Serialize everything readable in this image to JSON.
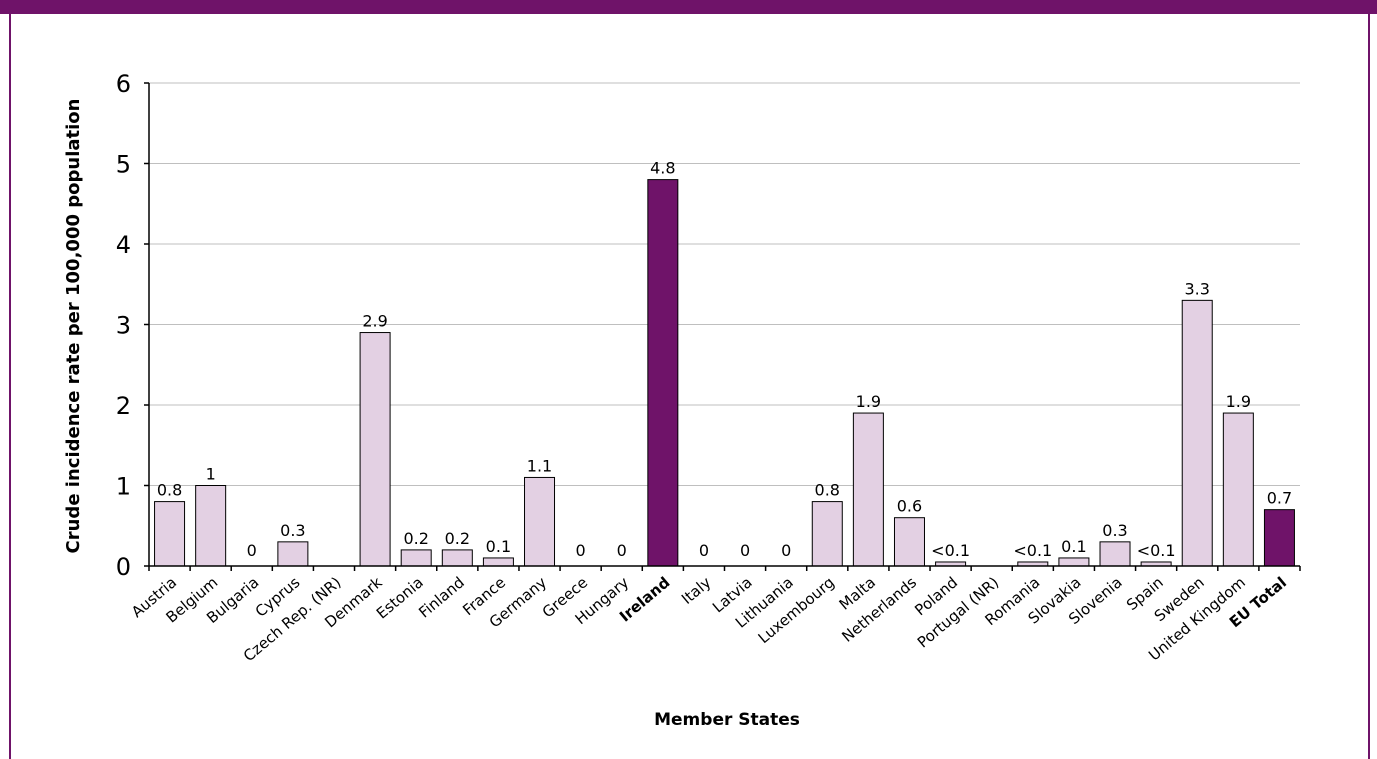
{
  "chart_data": {
    "type": "bar",
    "title": "",
    "xlabel": "Member States",
    "ylabel": "Crude incidence rate per 100,000 population",
    "ylim": [
      0,
      6
    ],
    "yticks": [
      "0",
      "1",
      "2",
      "3",
      "4",
      "5",
      "6"
    ],
    "grid": true,
    "categories": [
      "Austria",
      "Belgium",
      "Bulgaria",
      "Cyprus",
      "Czech Rep. (NR)",
      "Denmark",
      "Estonia",
      "Finland",
      "France",
      "Germany",
      "Greece",
      "Hungary",
      "Ireland",
      "Italy",
      "Latvia",
      "Lithuania",
      "Luxembourg",
      "Malta",
      "Netherlands",
      "Poland",
      "Portugal (NR)",
      "Romania",
      "Slovakia",
      "Slovenia",
      "Spain",
      "Sweden",
      "United Kingdom",
      "EU Total"
    ],
    "values": [
      0.8,
      1,
      0,
      0.3,
      null,
      2.9,
      0.2,
      0.2,
      0.1,
      1.1,
      0,
      0,
      4.8,
      0,
      0,
      0,
      0.8,
      1.9,
      0.6,
      0.05,
      null,
      0.05,
      0.1,
      0.3,
      0.05,
      3.3,
      1.9,
      0.7
    ],
    "data_labels": [
      "0.8",
      "1",
      "0",
      "0.3",
      "",
      "2.9",
      "0.2",
      "0.2",
      "0.1",
      "1.1",
      "0",
      "0",
      "4.8",
      "0",
      "0",
      "0",
      "0.8",
      "1.9",
      "0.6",
      "<0.1",
      "",
      "<0.1",
      "0.1",
      "0.3",
      "<0.1",
      "3.3",
      "1.9",
      "0.7"
    ],
    "highlighted": [
      "Ireland",
      "EU Total"
    ],
    "colors": {
      "default_bar": "#e3d0e3",
      "highlight_bar": "#6f1369",
      "bar_border": "#000000",
      "grid": "#bfbfbf",
      "frame": "#6f1369"
    }
  }
}
